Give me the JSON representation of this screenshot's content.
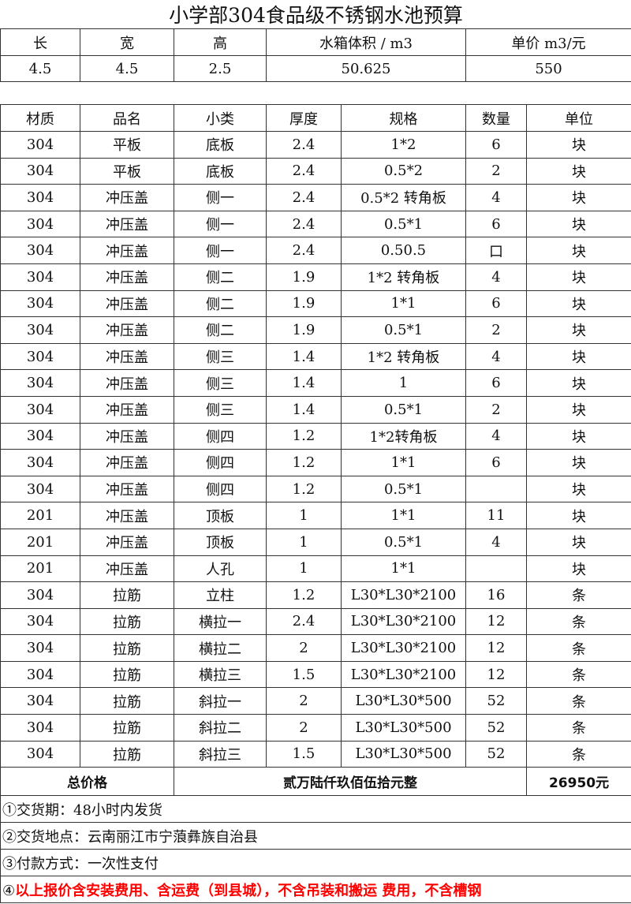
{
  "title": "小学部304食品级不锈钢水池预算",
  "dims": {
    "headers": [
      "长",
      "宽",
      "高",
      "水箱体积 / m3",
      "单价 m3/元"
    ],
    "values": [
      "4.5",
      "4.5",
      "2.5",
      "50.625",
      "550"
    ]
  },
  "items": {
    "headers": [
      "材质",
      "品名",
      "小类",
      "厚度",
      "规格",
      "数量",
      "单位"
    ],
    "rows": [
      [
        "304",
        "平板",
        "底板",
        "2.4",
        "1*2",
        "6",
        "块"
      ],
      [
        "304",
        "平板",
        "底板",
        "2.4",
        "0.5*2",
        "2",
        "块"
      ],
      [
        "304",
        "冲压盖",
        "侧一",
        "2.4",
        "0.5*2 转角板",
        "4",
        "块"
      ],
      [
        "304",
        "冲压盖",
        "侧一",
        "2.4",
        "0.5*1",
        "6",
        "块"
      ],
      [
        "304",
        "冲压盖",
        "侧一",
        "2.4",
        "0.50.5",
        "口",
        "块"
      ],
      [
        "304",
        "冲压盖",
        "侧二",
        "1.9",
        "1*2 转角板",
        "4",
        "块"
      ],
      [
        "304",
        "冲压盖",
        "侧二",
        "1.9",
        "1*1",
        "6",
        "块"
      ],
      [
        "304",
        "冲压盖",
        "侧二",
        "1.9",
        "0.5*1",
        "2",
        "块"
      ],
      [
        "304",
        "冲压盖",
        "侧三",
        "1.4",
        "1*2 转角板",
        "4",
        "块"
      ],
      [
        "304",
        "冲压盖",
        "侧三",
        "1.4",
        "1",
        "6",
        "块"
      ],
      [
        "304",
        "冲压盖",
        "侧三",
        "1.4",
        "0.5*1",
        "2",
        "块"
      ],
      [
        "304",
        "冲压盖",
        "侧四",
        "1.2",
        "1*2转角板",
        "4",
        "块"
      ],
      [
        "304",
        "冲压盖",
        "侧四",
        "1.2",
        "1*1",
        "6",
        "块"
      ],
      [
        "304",
        "冲压盖",
        "侧四",
        "1.2",
        "0.5*1",
        "",
        "块"
      ],
      [
        "201",
        "冲压盖",
        "顶板",
        "1",
        "1*1",
        "11",
        "块"
      ],
      [
        "201",
        "冲压盖",
        "顶板",
        "1",
        "0.5*1",
        "4",
        "块"
      ],
      [
        "201",
        "冲压盖",
        "人孔",
        "1",
        "1*1",
        "",
        "块"
      ],
      [
        "304",
        "拉筋",
        "立柱",
        "1.2",
        "L30*L30*2100",
        "16",
        "条"
      ],
      [
        "304",
        "拉筋",
        "横拉一",
        "2.4",
        "L30*L30*2100",
        "12",
        "条"
      ],
      [
        "304",
        "拉筋",
        "横拉二",
        "2",
        "L30*L30*2100",
        "12",
        "条"
      ],
      [
        "304",
        "拉筋",
        "横拉三",
        "1.5",
        "L30*L30*2100",
        "12",
        "条"
      ],
      [
        "304",
        "拉筋",
        "斜拉一",
        "2",
        "L30*L30*500",
        "52",
        "条"
      ],
      [
        "304",
        "拉筋",
        "斜拉二",
        "2",
        "L30*L30*500",
        "52",
        "条"
      ],
      [
        "304",
        "拉筋",
        "斜拉三",
        "1.5",
        "L30*L30*500",
        "52",
        "条"
      ]
    ]
  },
  "total": {
    "label": "总价格",
    "amount_words": "贰万陆仟玖佰伍拾元整",
    "amount": "26950元"
  },
  "notes": [
    {
      "num": "①",
      "text": "交货期：48小时内发货"
    },
    {
      "num": "②",
      "text": "交货地点：云南丽江市宁蒗彝族自治县"
    },
    {
      "num": "③",
      "text": "付款方式：一次性支付"
    },
    {
      "num": "④",
      "text": "以上报价含安装费用、含运费（到县城），不含吊装和搬运 费用，不含槽钢"
    }
  ],
  "colors": {
    "warning_text": "#ff0000",
    "grid": "#333333"
  }
}
